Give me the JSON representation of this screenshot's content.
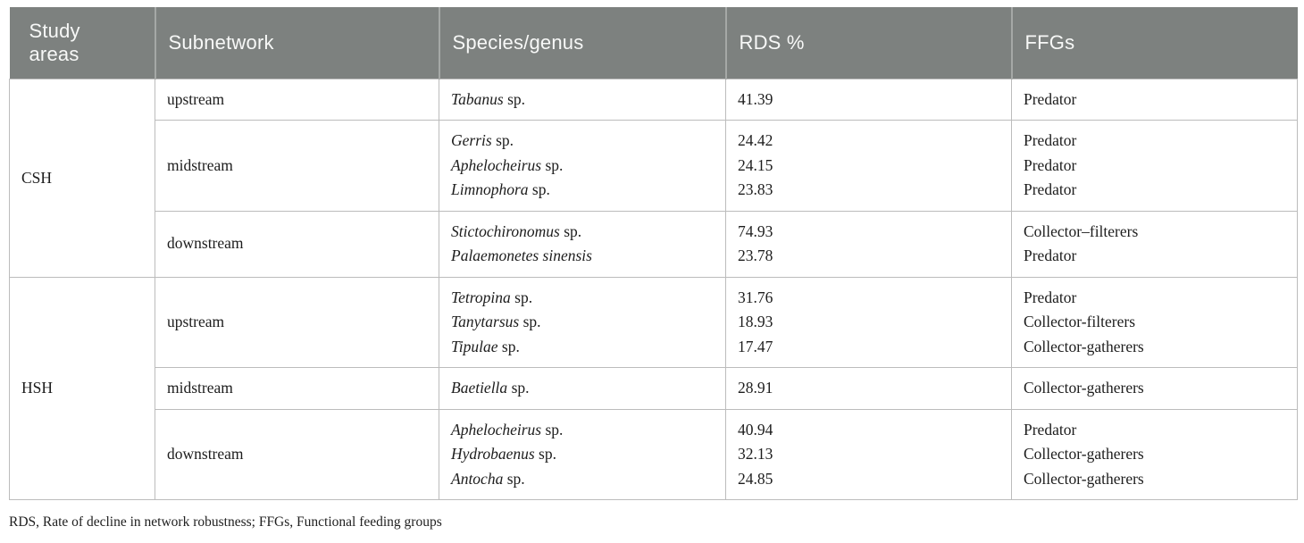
{
  "table": {
    "columns": [
      "Study\nareas",
      "Subnetwork",
      "Species/genus",
      "RDS %",
      "FFGs"
    ],
    "column_names": [
      "study-areas",
      "subnetwork",
      "species-genus",
      "rds-percent",
      "ffgs"
    ],
    "groups": [
      {
        "study_area": "CSH",
        "subrows": [
          {
            "subnetwork": "upstream",
            "entries": [
              {
                "species_italic": "Tabanus",
                "species_roman": " sp.",
                "rds": "41.39",
                "ffg": "Predator"
              }
            ]
          },
          {
            "subnetwork": "midstream",
            "entries": [
              {
                "species_italic": "Gerris",
                "species_roman": " sp.",
                "rds": "24.42",
                "ffg": "Predator"
              },
              {
                "species_italic": "Aphelocheirus",
                "species_roman": " sp.",
                "rds": "24.15",
                "ffg": "Predator"
              },
              {
                "species_italic": "Limnophora",
                "species_roman": " sp.",
                "rds": "23.83",
                "ffg": "Predator"
              }
            ]
          },
          {
            "subnetwork": "downstream",
            "entries": [
              {
                "species_italic": "Stictochironomus",
                "species_roman": " sp.",
                "rds": "74.93",
                "ffg": "Collector–filterers"
              },
              {
                "species_italic": "Palaemonetes sinensis",
                "species_roman": "",
                "rds": "23.78",
                "ffg": "Predator"
              }
            ]
          }
        ]
      },
      {
        "study_area": "HSH",
        "subrows": [
          {
            "subnetwork": "upstream",
            "entries": [
              {
                "species_italic": "Tetropina",
                "species_roman": " sp.",
                "rds": "31.76",
                "ffg": "Predator"
              },
              {
                "species_italic": "Tanytarsus",
                "species_roman": " sp.",
                "rds": "18.93",
                "ffg": "Collector-filterers"
              },
              {
                "species_italic": "Tipulae",
                "species_roman": " sp.",
                "rds": "17.47",
                "ffg": "Collector-gatherers"
              }
            ]
          },
          {
            "subnetwork": "midstream",
            "entries": [
              {
                "species_italic": "Baetiella",
                "species_roman": " sp.",
                "rds": "28.91",
                "ffg": "Collector-gatherers"
              }
            ]
          },
          {
            "subnetwork": "downstream",
            "entries": [
              {
                "species_italic": "Aphelocheirus",
                "species_roman": " sp.",
                "rds": "40.94",
                "ffg": "Predator"
              },
              {
                "species_italic": "Hydrobaenus",
                "species_roman": " sp.",
                "rds": "32.13",
                "ffg": "Collector-gatherers"
              },
              {
                "species_italic": "Antocha",
                "species_roman": " sp.",
                "rds": "24.85",
                "ffg": "Collector-gatherers"
              }
            ]
          }
        ]
      }
    ],
    "footnote": "RDS, Rate of decline in network robustness; FFGs, Functional feeding groups"
  },
  "colors": {
    "header_background": "#7d817f",
    "header_text": "#f7f8f7",
    "header_divider": "#a5a8a6",
    "body_text": "#1d1d1d",
    "cell_border": "#bcbcbc",
    "page_background": "#ffffff"
  }
}
